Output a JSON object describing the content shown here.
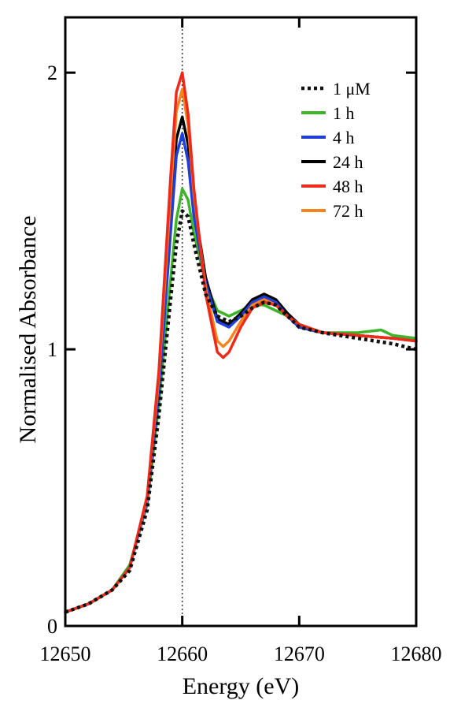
{
  "chart_data": {
    "type": "line",
    "title": "",
    "xlabel": "Energy (eV)",
    "ylabel": "Normalised Absorbance",
    "xlim": [
      12650,
      12680
    ],
    "ylim": [
      0,
      2.2
    ],
    "x_ticks": [
      12650,
      12660,
      12670,
      12680
    ],
    "x_tick_labels": [
      "12650",
      "12660",
      "12670",
      "12680"
    ],
    "y_ticks": [
      0,
      1,
      2
    ],
    "y_tick_labels": [
      "0",
      "1",
      "2"
    ],
    "grid": false,
    "legend_position": "top-right",
    "reference_line": {
      "x": 12660,
      "style": "dotted"
    },
    "series": [
      {
        "name": "1 μM",
        "color": "#111111",
        "style": "dotted",
        "x": [
          12650,
          12652,
          12654,
          12655.5,
          12657,
          12658,
          12659,
          12659.5,
          12660,
          12660.5,
          12661,
          12662,
          12663,
          12664,
          12665,
          12666,
          12667,
          12668,
          12669,
          12670,
          12672,
          12675,
          12678,
          12680
        ],
        "y": [
          0.05,
          0.08,
          0.13,
          0.2,
          0.42,
          0.76,
          1.18,
          1.38,
          1.5,
          1.48,
          1.38,
          1.2,
          1.12,
          1.1,
          1.12,
          1.15,
          1.17,
          1.16,
          1.12,
          1.08,
          1.06,
          1.04,
          1.02,
          1.0
        ]
      },
      {
        "name": "1 h",
        "color": "#3cb529",
        "style": "solid",
        "x": [
          12650,
          12652,
          12654,
          12655.5,
          12657,
          12658,
          12659,
          12659.5,
          12660,
          12660.5,
          12661,
          12662,
          12663,
          12664,
          12665,
          12666,
          12667,
          12668,
          12669,
          12670,
          12672,
          12675,
          12677,
          12678,
          12680
        ],
        "y": [
          0.05,
          0.08,
          0.13,
          0.22,
          0.44,
          0.8,
          1.25,
          1.47,
          1.58,
          1.54,
          1.42,
          1.24,
          1.14,
          1.12,
          1.14,
          1.16,
          1.16,
          1.14,
          1.12,
          1.08,
          1.06,
          1.06,
          1.07,
          1.05,
          1.04
        ]
      },
      {
        "name": "4 h",
        "color": "#1f3fdb",
        "style": "solid",
        "x": [
          12650,
          12652,
          12654,
          12655.5,
          12657,
          12658,
          12659,
          12659.5,
          12660,
          12660.5,
          12661,
          12662,
          12663,
          12664,
          12665,
          12666,
          12667,
          12668,
          12669,
          12670,
          12672,
          12675,
          12678,
          12680
        ],
        "y": [
          0.05,
          0.08,
          0.13,
          0.21,
          0.45,
          0.84,
          1.42,
          1.7,
          1.78,
          1.68,
          1.48,
          1.24,
          1.1,
          1.08,
          1.12,
          1.17,
          1.19,
          1.17,
          1.12,
          1.08,
          1.06,
          1.05,
          1.04,
          1.03
        ]
      },
      {
        "name": "24 h",
        "color": "#000000",
        "style": "solid",
        "x": [
          12650,
          12652,
          12654,
          12655.5,
          12657,
          12658,
          12659,
          12659.5,
          12660,
          12660.5,
          12661,
          12662,
          12663,
          12664,
          12665,
          12666,
          12667,
          12668,
          12669,
          12670,
          12672,
          12675,
          12678,
          12680
        ],
        "y": [
          0.05,
          0.08,
          0.13,
          0.21,
          0.46,
          0.87,
          1.48,
          1.76,
          1.84,
          1.74,
          1.53,
          1.26,
          1.11,
          1.09,
          1.13,
          1.18,
          1.2,
          1.18,
          1.13,
          1.09,
          1.06,
          1.05,
          1.04,
          1.03
        ]
      },
      {
        "name": "48 h",
        "color": "#ee2a1a",
        "style": "solid",
        "x": [
          12650,
          12652,
          12654,
          12655.5,
          12657,
          12658,
          12659,
          12659.5,
          12660,
          12660.5,
          12661,
          12662,
          12663,
          12663.5,
          12664,
          12665,
          12666,
          12667,
          12668,
          12669,
          12670,
          12672,
          12675,
          12678,
          12680
        ],
        "y": [
          0.05,
          0.08,
          0.13,
          0.21,
          0.47,
          0.92,
          1.62,
          1.93,
          2.0,
          1.85,
          1.58,
          1.2,
          0.99,
          0.97,
          0.99,
          1.08,
          1.15,
          1.17,
          1.16,
          1.12,
          1.09,
          1.06,
          1.05,
          1.04,
          1.03
        ]
      },
      {
        "name": "72 h",
        "color": "#f5841f",
        "style": "solid",
        "x": [
          12650,
          12652,
          12654,
          12655.5,
          12657,
          12658,
          12659,
          12659.5,
          12660,
          12660.5,
          12661,
          12662,
          12663,
          12663.5,
          12664,
          12665,
          12666,
          12667,
          12668,
          12669,
          12670,
          12672,
          12675,
          12678,
          12680
        ],
        "y": [
          0.05,
          0.08,
          0.13,
          0.21,
          0.46,
          0.9,
          1.56,
          1.86,
          1.94,
          1.81,
          1.56,
          1.22,
          1.03,
          1.01,
          1.03,
          1.1,
          1.16,
          1.18,
          1.16,
          1.12,
          1.09,
          1.06,
          1.05,
          1.04,
          1.03
        ]
      }
    ]
  }
}
